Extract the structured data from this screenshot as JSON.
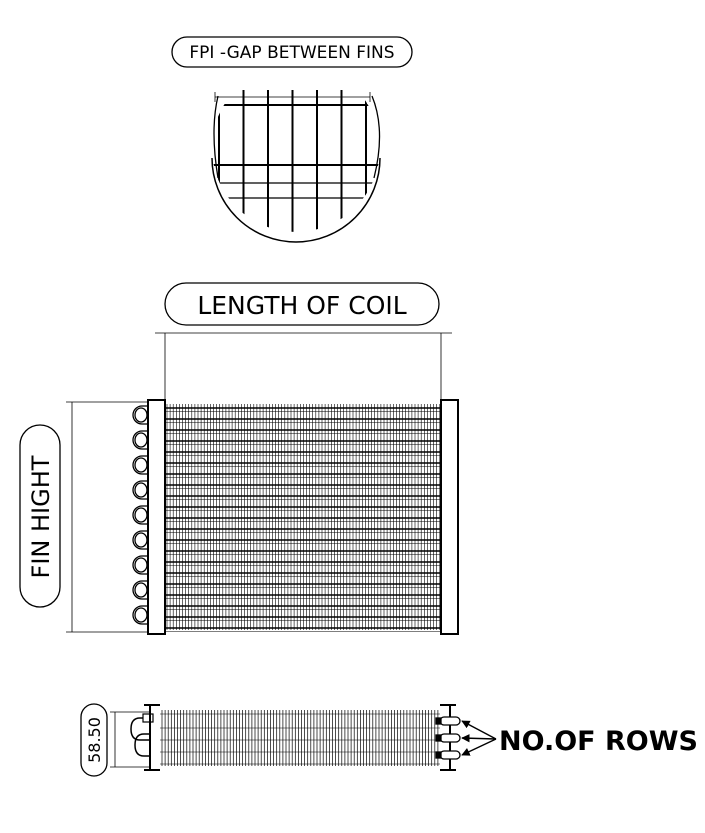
{
  "labels": {
    "fpi": "FPI -GAP BETWEEN FINS",
    "length": "LENGTH OF COIL",
    "height": "FIN HIGHT",
    "depth": "58.50",
    "rows": "NO.OF ROWS"
  }
}
